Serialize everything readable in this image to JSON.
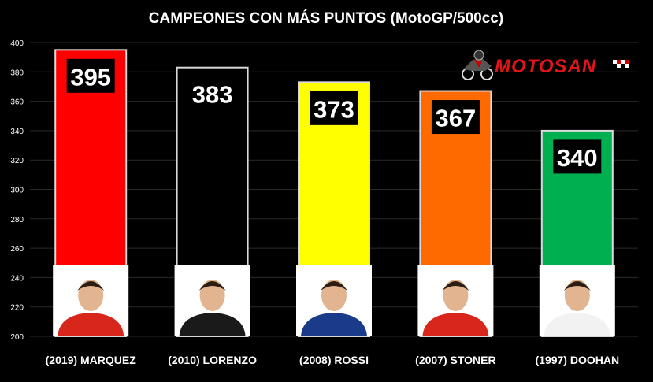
{
  "chart_data": {
    "type": "bar",
    "title": "CAMPEONES CON MÁS PUNTOS (MotoGP/500cc)",
    "xlabel": "",
    "ylabel": "",
    "ylim": [
      200,
      400
    ],
    "yticks": [
      200,
      220,
      240,
      260,
      280,
      300,
      320,
      340,
      360,
      380,
      400
    ],
    "grid": true,
    "categories": [
      "(2019) MARQUEZ",
      "(2010) LORENZO",
      "(2008) ROSSI",
      "(2007) STONER",
      "(1997) DOOHAN"
    ],
    "values": [
      395,
      383,
      373,
      367,
      340
    ],
    "data_labels": [
      "395",
      "383",
      "373",
      "367",
      "340"
    ],
    "bar_colors": [
      "#ff0000",
      "#000000",
      "#ffff00",
      "#ff6a00",
      "#00b050"
    ],
    "photo_icons": [
      "rider-photo-marquez",
      "rider-photo-lorenzo",
      "rider-photo-rossi",
      "rider-photo-stoner",
      "rider-photo-doohan"
    ]
  },
  "logo": {
    "text": "MOTOSAN",
    "icon": "motorcycle-rider-icon",
    "color": "#e0151b"
  },
  "colors": {
    "background": "#000000",
    "grid": "#2a2a2a",
    "axis_text": "#ffffff"
  }
}
